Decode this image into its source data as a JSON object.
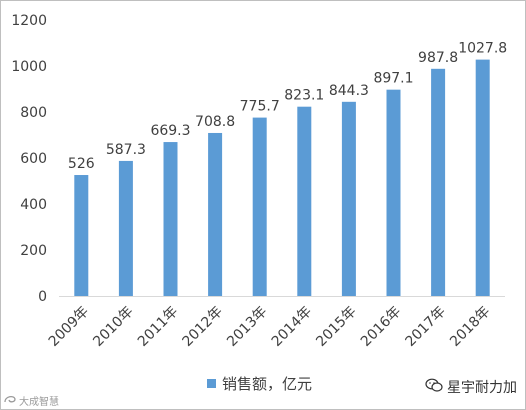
{
  "chart_data": {
    "type": "bar",
    "categories": [
      "2009年",
      "2010年",
      "2011年",
      "2012年",
      "2013年",
      "2014年",
      "2015年",
      "2016年",
      "2017年",
      "2018年"
    ],
    "series": [
      {
        "name": "销售额，亿元",
        "values": [
          526,
          587.3,
          669.3,
          708.8,
          775.7,
          823.1,
          844.3,
          897.1,
          987.8,
          1027.8
        ]
      }
    ],
    "value_labels": [
      "526",
      "587.3",
      "669.3",
      "708.8",
      "775.7",
      "823.1",
      "844.3",
      "897.1",
      "987.8",
      "1027.8"
    ],
    "y_ticks": [
      "0",
      "200",
      "400",
      "600",
      "800",
      "1000",
      "1200"
    ],
    "ylim": [
      0,
      1200
    ],
    "grid": false,
    "legend_position": "bottom",
    "bar_color": "#5b9bd5"
  },
  "watermarks": {
    "left_text": "大成智慧",
    "right_text": "星宇耐力加"
  },
  "icons": {
    "left": "swirl-icon",
    "right": "wechat-icon"
  }
}
